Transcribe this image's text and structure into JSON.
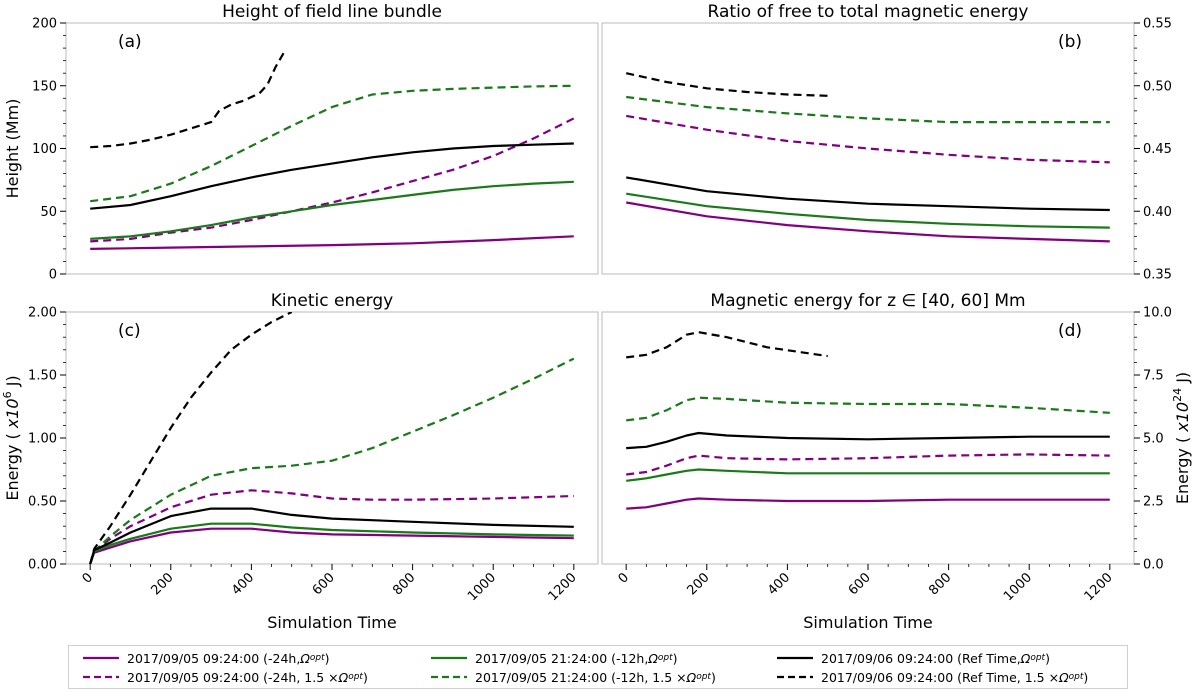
{
  "colors": {
    "purple": "#800080",
    "green": "#1a7a1a",
    "black": "#000000",
    "frame": "#bbbbbb"
  },
  "x_label": "Simulation Time",
  "legend": {
    "items": [
      {
        "series": "purple_solid",
        "label": "2017/09/05 09:24:00 (-24h, ",
        "omega": "Ω",
        "sub": "opt",
        "close": ")",
        "color": "#800080",
        "dashed": false
      },
      {
        "series": "purple_dashed",
        "label": "2017/09/05 09:24:00 (-24h, 1.5 × ",
        "omega": "Ω",
        "sub": "opt",
        "close": ")",
        "color": "#800080",
        "dashed": true
      },
      {
        "series": "green_solid",
        "label": "2017/09/05 21:24:00 (-12h, ",
        "omega": "Ω",
        "sub": "opt",
        "close": ")",
        "color": "#1a7a1a",
        "dashed": false
      },
      {
        "series": "green_dashed",
        "label": "2017/09/05 21:24:00 (-12h, 1.5 × ",
        "omega": "Ω",
        "sub": "opt",
        "close": ")",
        "color": "#1a7a1a",
        "dashed": true
      },
      {
        "series": "black_solid",
        "label": "2017/09/06 09:24:00 (Ref Time, ",
        "omega": "Ω",
        "sub": "opt",
        "close": ")",
        "color": "#000000",
        "dashed": false
      },
      {
        "series": "black_dashed",
        "label": "2017/09/06 09:24:00 (Ref Time, 1.5 × ",
        "omega": "Ω",
        "sub": "opt",
        "close": ")",
        "color": "#000000",
        "dashed": true
      }
    ]
  },
  "chart_data": [
    {
      "type": "line",
      "panel": "(a)",
      "title": "Height of field line bundle",
      "xlabel": "",
      "ylabel": "Height (Mm)",
      "xlim": [
        -60,
        1260
      ],
      "ylim": [
        0,
        200
      ],
      "yticks": [
        0,
        50,
        100,
        150,
        200
      ],
      "ytick_labels": [
        "0",
        "50",
        "100",
        "150",
        "200"
      ],
      "yaxis": "left",
      "series": [
        {
          "key": "purple_solid",
          "color": "#800080",
          "dashed": false,
          "x": [
            0,
            200,
            400,
            600,
            800,
            1000,
            1200
          ],
          "y": [
            20,
            21,
            22,
            23,
            24.5,
            27,
            30
          ]
        },
        {
          "key": "purple_dashed",
          "color": "#800080",
          "dashed": true,
          "x": [
            0,
            100,
            200,
            300,
            400,
            500,
            600,
            700,
            800,
            900,
            1000,
            1100,
            1200
          ],
          "y": [
            26,
            28,
            33,
            37,
            43,
            50,
            57,
            65,
            74,
            83,
            94,
            108,
            124
          ]
        },
        {
          "key": "green_solid",
          "color": "#1a7a1a",
          "dashed": false,
          "x": [
            0,
            100,
            200,
            300,
            400,
            500,
            600,
            700,
            800,
            900,
            1000,
            1100,
            1200
          ],
          "y": [
            28,
            30,
            34,
            39,
            45,
            50,
            55,
            59,
            63,
            67,
            70,
            72,
            73.5
          ]
        },
        {
          "key": "green_dashed",
          "color": "#1a7a1a",
          "dashed": true,
          "x": [
            0,
            100,
            200,
            300,
            400,
            500,
            600,
            700,
            800,
            900,
            1000,
            1100,
            1200
          ],
          "y": [
            58,
            62,
            72,
            86,
            102,
            118,
            133,
            143,
            146,
            147.5,
            148.5,
            149.5,
            150
          ]
        },
        {
          "key": "black_solid",
          "color": "#000000",
          "dashed": false,
          "x": [
            0,
            100,
            200,
            300,
            400,
            500,
            600,
            700,
            800,
            900,
            1000,
            1100,
            1200
          ],
          "y": [
            52,
            55,
            62,
            70,
            77,
            83,
            88,
            93,
            97,
            100,
            102,
            103,
            104
          ]
        },
        {
          "key": "black_dashed",
          "color": "#000000",
          "dashed": true,
          "x": [
            0,
            50,
            100,
            150,
            200,
            250,
            300,
            320,
            350,
            380,
            400,
            420,
            440,
            460,
            480
          ],
          "y": [
            101,
            102,
            104,
            107,
            111,
            116,
            121,
            130,
            135,
            138,
            141,
            144,
            151,
            165,
            176
          ]
        }
      ]
    },
    {
      "type": "line",
      "panel": "(b)",
      "title": "Ratio of free to total magnetic energy",
      "xlabel": "",
      "ylabel": "",
      "xlim": [
        -60,
        1260
      ],
      "ylim": [
        0.35,
        0.55
      ],
      "yticks": [
        0.35,
        0.4,
        0.45,
        0.5,
        0.55
      ],
      "ytick_labels": [
        "0.35",
        "0.40",
        "0.45",
        "0.50",
        "0.55"
      ],
      "yaxis": "right",
      "series": [
        {
          "key": "purple_solid",
          "color": "#800080",
          "dashed": false,
          "x": [
            0,
            200,
            400,
            600,
            800,
            1000,
            1200
          ],
          "y": [
            0.407,
            0.396,
            0.389,
            0.384,
            0.38,
            0.378,
            0.376
          ]
        },
        {
          "key": "purple_dashed",
          "color": "#800080",
          "dashed": true,
          "x": [
            0,
            200,
            400,
            600,
            800,
            1000,
            1200
          ],
          "y": [
            0.476,
            0.465,
            0.456,
            0.45,
            0.445,
            0.441,
            0.439
          ]
        },
        {
          "key": "green_solid",
          "color": "#1a7a1a",
          "dashed": false,
          "x": [
            0,
            200,
            400,
            600,
            800,
            1000,
            1200
          ],
          "y": [
            0.414,
            0.404,
            0.398,
            0.393,
            0.39,
            0.388,
            0.387
          ]
        },
        {
          "key": "green_dashed",
          "color": "#1a7a1a",
          "dashed": true,
          "x": [
            0,
            200,
            400,
            600,
            800,
            1000,
            1200
          ],
          "y": [
            0.491,
            0.483,
            0.478,
            0.474,
            0.471,
            0.471,
            0.471
          ]
        },
        {
          "key": "black_solid",
          "color": "#000000",
          "dashed": false,
          "x": [
            0,
            200,
            400,
            600,
            800,
            1000,
            1200
          ],
          "y": [
            0.427,
            0.416,
            0.41,
            0.406,
            0.404,
            0.402,
            0.401
          ]
        },
        {
          "key": "black_dashed",
          "color": "#000000",
          "dashed": true,
          "x": [
            0,
            100,
            200,
            300,
            400,
            500
          ],
          "y": [
            0.51,
            0.503,
            0.498,
            0.495,
            0.493,
            0.492
          ]
        }
      ]
    },
    {
      "type": "line",
      "panel": "(c)",
      "title": "Kinetic energy",
      "xlabel": "Simulation Time",
      "ylabel": "Energy ( x10^6 J)",
      "xlim": [
        -60,
        1260
      ],
      "ylim": [
        0,
        2
      ],
      "yticks": [
        0,
        0.5,
        1,
        1.5,
        2
      ],
      "ytick_labels": [
        "0.00",
        "0.50",
        "1.00",
        "1.50",
        "2.00"
      ],
      "xticks": [
        0,
        200,
        400,
        600,
        800,
        1000,
        1200
      ],
      "xtick_labels": [
        "0",
        "200",
        "400",
        "600",
        "800",
        "1000",
        "1200"
      ],
      "yaxis": "left",
      "series": [
        {
          "key": "purple_solid",
          "color": "#800080",
          "dashed": false,
          "x": [
            0,
            10,
            50,
            100,
            200,
            300,
            400,
            500,
            600,
            800,
            1000,
            1200
          ],
          "y": [
            0,
            0.09,
            0.13,
            0.18,
            0.25,
            0.28,
            0.28,
            0.25,
            0.235,
            0.225,
            0.215,
            0.205
          ]
        },
        {
          "key": "purple_dashed",
          "color": "#800080",
          "dashed": true,
          "x": [
            0,
            10,
            50,
            100,
            200,
            300,
            400,
            500,
            600,
            700,
            800,
            1000,
            1200
          ],
          "y": [
            0,
            0.1,
            0.2,
            0.3,
            0.45,
            0.55,
            0.585,
            0.56,
            0.52,
            0.51,
            0.51,
            0.52,
            0.54
          ]
        },
        {
          "key": "green_solid",
          "color": "#1a7a1a",
          "dashed": false,
          "x": [
            0,
            10,
            50,
            100,
            200,
            300,
            400,
            500,
            600,
            800,
            1000,
            1200
          ],
          "y": [
            0,
            0.1,
            0.15,
            0.2,
            0.28,
            0.32,
            0.32,
            0.29,
            0.27,
            0.25,
            0.235,
            0.225
          ]
        },
        {
          "key": "green_dashed",
          "color": "#1a7a1a",
          "dashed": true,
          "x": [
            0,
            10,
            50,
            100,
            200,
            300,
            400,
            500,
            600,
            700,
            800,
            900,
            1000,
            1100,
            1200
          ],
          "y": [
            0,
            0.1,
            0.22,
            0.35,
            0.55,
            0.7,
            0.76,
            0.78,
            0.82,
            0.92,
            1.05,
            1.18,
            1.32,
            1.47,
            1.63
          ]
        },
        {
          "key": "black_solid",
          "color": "#000000",
          "dashed": false,
          "x": [
            0,
            10,
            50,
            100,
            200,
            300,
            400,
            500,
            600,
            800,
            1000,
            1200
          ],
          "y": [
            0,
            0.11,
            0.17,
            0.25,
            0.38,
            0.44,
            0.44,
            0.39,
            0.36,
            0.335,
            0.31,
            0.295
          ]
        },
        {
          "key": "black_dashed",
          "color": "#000000",
          "dashed": true,
          "x": [
            0,
            10,
            50,
            100,
            200,
            250,
            300,
            350,
            400,
            450,
            500
          ],
          "y": [
            0,
            0.12,
            0.3,
            0.55,
            1.08,
            1.32,
            1.52,
            1.7,
            1.82,
            1.92,
            2.0
          ]
        }
      ]
    },
    {
      "type": "line",
      "panel": "(d)",
      "title": "Magnetic energy for z ∈ [40, 60] Mm",
      "xlabel": "Simulation Time",
      "ylabel": "Energy ( x10^24 J)",
      "xlim": [
        -60,
        1260
      ],
      "ylim": [
        0,
        10
      ],
      "yticks": [
        0,
        2.5,
        5,
        7.5,
        10
      ],
      "ytick_labels": [
        "0.0",
        "2.5",
        "5.0",
        "7.5",
        "10.0"
      ],
      "xticks": [
        0,
        200,
        400,
        600,
        800,
        1000,
        1200
      ],
      "xtick_labels": [
        "0",
        "200",
        "400",
        "600",
        "800",
        "1000",
        "1200"
      ],
      "yaxis": "right",
      "series": [
        {
          "key": "purple_solid",
          "color": "#800080",
          "dashed": false,
          "x": [
            0,
            50,
            100,
            150,
            180,
            250,
            400,
            600,
            800,
            1000,
            1200
          ],
          "y": [
            2.2,
            2.25,
            2.4,
            2.55,
            2.6,
            2.55,
            2.5,
            2.5,
            2.55,
            2.55,
            2.55
          ]
        },
        {
          "key": "purple_dashed",
          "color": "#800080",
          "dashed": true,
          "x": [
            0,
            50,
            100,
            150,
            180,
            250,
            400,
            600,
            800,
            1000,
            1200
          ],
          "y": [
            3.55,
            3.65,
            3.9,
            4.2,
            4.3,
            4.2,
            4.15,
            4.2,
            4.3,
            4.35,
            4.3
          ]
        },
        {
          "key": "green_solid",
          "color": "#1a7a1a",
          "dashed": false,
          "x": [
            0,
            50,
            100,
            150,
            180,
            250,
            400,
            600,
            800,
            1000,
            1200
          ],
          "y": [
            3.3,
            3.4,
            3.55,
            3.7,
            3.75,
            3.7,
            3.6,
            3.6,
            3.6,
            3.6,
            3.6
          ]
        },
        {
          "key": "green_dashed",
          "color": "#1a7a1a",
          "dashed": true,
          "x": [
            0,
            50,
            100,
            150,
            180,
            250,
            400,
            600,
            800,
            1000,
            1200
          ],
          "y": [
            5.7,
            5.8,
            6.1,
            6.5,
            6.6,
            6.55,
            6.4,
            6.35,
            6.35,
            6.2,
            6.0
          ]
        },
        {
          "key": "black_solid",
          "color": "#000000",
          "dashed": false,
          "x": [
            0,
            50,
            100,
            150,
            180,
            250,
            400,
            600,
            800,
            1000,
            1200
          ],
          "y": [
            4.6,
            4.65,
            4.85,
            5.1,
            5.2,
            5.1,
            5.0,
            4.95,
            5.0,
            5.05,
            5.05
          ]
        },
        {
          "key": "black_dashed",
          "color": "#000000",
          "dashed": true,
          "x": [
            0,
            50,
            100,
            150,
            180,
            250,
            350,
            500
          ],
          "y": [
            8.2,
            8.3,
            8.6,
            9.1,
            9.2,
            9.0,
            8.6,
            8.25
          ]
        }
      ]
    }
  ]
}
